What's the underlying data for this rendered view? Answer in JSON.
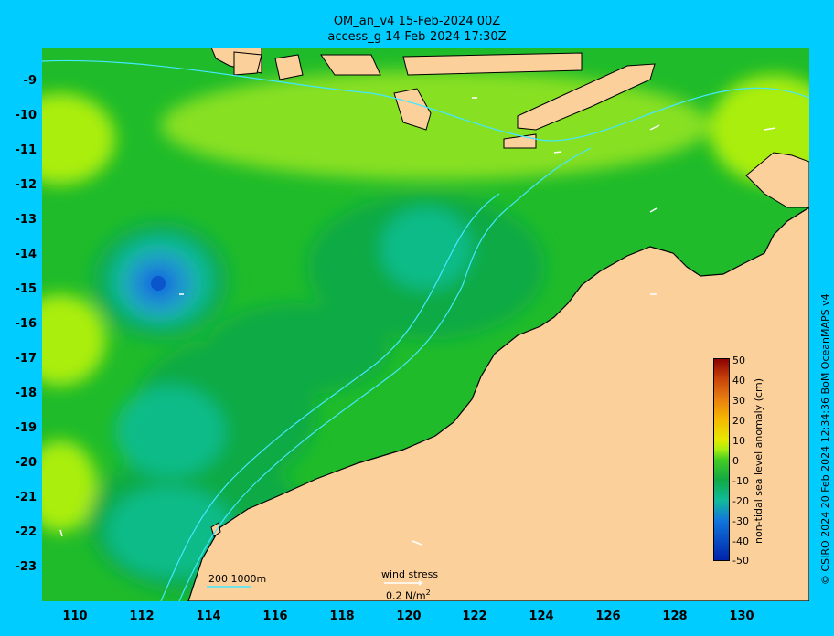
{
  "header": {
    "line1": "OM_an_v4  15-Feb-2024 00Z",
    "line2": "access_g 14-Feb-2024 17:30Z"
  },
  "axes": {
    "lat_labels": [
      "-9",
      "-10",
      "-11",
      "-12",
      "-13",
      "-14",
      "-15",
      "-16",
      "-17",
      "-18",
      "-19",
      "-20",
      "-21",
      "-22",
      "-23"
    ],
    "lon_labels": [
      "110",
      "112",
      "114",
      "116",
      "118",
      "120",
      "122",
      "124",
      "126",
      "128",
      "130"
    ]
  },
  "colorbar": {
    "title": "non-tidal sea level anomaly (cm)",
    "ticks": [
      "50",
      "40",
      "30",
      "20",
      "10",
      "0",
      "-10",
      "-20",
      "-30",
      "-40",
      "-50"
    ],
    "colors": [
      "#8b0000",
      "#c8440a",
      "#e87f10",
      "#f5b800",
      "#e8e800",
      "#a8ee10",
      "#44cc22",
      "#11aa44",
      "#11bb99",
      "#1177dd",
      "#0022aa"
    ]
  },
  "legend": {
    "isobaths": "200  1000m",
    "wind_label": "wind stress",
    "wind_value": "0.2 N/m",
    "wind_unit_sup": "2"
  },
  "credit": "© CSIRO 2024  20 Feb 2024 12:34:36 BoM OceanMAPS v4",
  "colors": {
    "background": "#00ccff",
    "land": "#fcd09a",
    "ocean_green": "#22bb22",
    "contour": "#44e8ff"
  }
}
